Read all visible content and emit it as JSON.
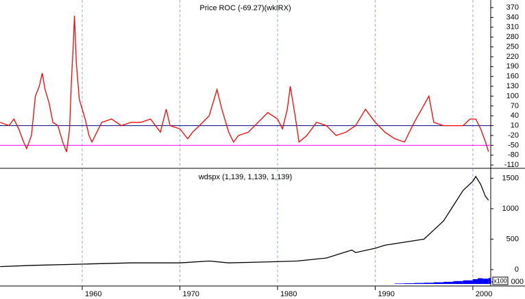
{
  "chart_data": [
    {
      "type": "line",
      "title": "Price ROC (-69.27)(wkIRX)",
      "xlim": [
        1951.58,
        2001.83
      ],
      "xticks": [
        1960,
        1970,
        1980,
        1990,
        2000
      ],
      "ylim": [
        -118,
        393
      ],
      "yticks": [
        370,
        340,
        310,
        280,
        250,
        220,
        190,
        160,
        130,
        100,
        70,
        40,
        10,
        -20,
        -50,
        -80,
        -110
      ],
      "grid": true,
      "reference_lines": [
        {
          "value": 10,
          "color": "#00007f"
        },
        {
          "value": -50,
          "color": "#ff00ff"
        }
      ],
      "series": [
        {
          "name": "Price ROC",
          "color": "#ff0000",
          "x": [
            1951.6,
            1952.5,
            1953,
            1953.5,
            1954,
            1954.3,
            1954.8,
            1955.2,
            1955.6,
            1955.9,
            1956.2,
            1956.6,
            1957,
            1957.5,
            1958,
            1958.4,
            1958.7,
            1958.9,
            1959.1,
            1959.2,
            1959.4,
            1959.7,
            1960,
            1960.3,
            1960.7,
            1961,
            1961.5,
            1962,
            1963,
            1964,
            1965,
            1966,
            1967,
            1968,
            1968.6,
            1969,
            1970,
            1970.8,
            1971.3,
            1972,
            1973,
            1973.8,
            1974.3,
            1975,
            1975.5,
            1976,
            1977,
            1978,
            1979,
            1980,
            1980.5,
            1981,
            1981.3,
            1981.8,
            1982.2,
            1983,
            1984,
            1985,
            1986,
            1987,
            1988,
            1989,
            1990,
            1991,
            1992,
            1993,
            1994,
            1995.5,
            1996,
            1997,
            1998,
            1999,
            1999.7,
            2000.3,
            2000.8,
            2001.3,
            2001.6
          ],
          "values": [
            20,
            10,
            30,
            0,
            -40,
            -60,
            -20,
            100,
            130,
            170,
            120,
            80,
            20,
            10,
            -40,
            -70,
            0,
            150,
            270,
            345,
            200,
            90,
            60,
            30,
            -20,
            -40,
            -10,
            20,
            30,
            10,
            20,
            20,
            30,
            -10,
            60,
            10,
            0,
            -30,
            -10,
            10,
            40,
            120,
            60,
            -10,
            -40,
            -20,
            -10,
            20,
            50,
            30,
            0,
            60,
            130,
            40,
            -40,
            -20,
            20,
            10,
            -20,
            -10,
            10,
            60,
            20,
            -10,
            -30,
            -40,
            20,
            100,
            20,
            10,
            10,
            10,
            30,
            30,
            0,
            -40,
            -69.27
          ]
        }
      ]
    },
    {
      "type": "line",
      "title": "wdspx (1,139, 1,139, 1,139)",
      "xlim": [
        1951.58,
        2001.83
      ],
      "xticks": [
        1960,
        1970,
        1980,
        1990,
        2000
      ],
      "ylim": [
        -236,
        1652
      ],
      "yticks": [
        1500,
        1000,
        500,
        0
      ],
      "y2lim": [
        0,
        40
      ],
      "y2ticks": [
        {
          "value": 0,
          "label": "000"
        }
      ],
      "y2_unit": "x100",
      "grid": true,
      "series": [
        {
          "name": "wdspx",
          "color": "#000000",
          "x": [
            1951.6,
            1955,
            1960,
            1965,
            1970,
            1973,
            1975,
            1980,
            1982,
            1985,
            1987.6,
            1988,
            1990,
            1991,
            1995,
            1996,
            1997,
            1998,
            1999,
            2000,
            2000.3,
            2000.8,
            2001.3,
            2001.6
          ],
          "values": [
            50,
            70,
            90,
            110,
            110,
            140,
            110,
            130,
            140,
            190,
            320,
            280,
            350,
            400,
            500,
            650,
            800,
            1050,
            1300,
            1450,
            1530,
            1400,
            1200,
            1139
          ]
        },
        {
          "name": "volume",
          "color": "#0000ff",
          "axis": "y2",
          "bars": true,
          "x": [
            1992,
            1993,
            1994,
            1995,
            1996,
            1997,
            1998,
            1999,
            2000,
            2000.5,
            2001,
            2001.6
          ],
          "values": [
            2,
            3,
            4,
            5,
            7,
            9,
            12,
            15,
            20,
            24,
            22,
            25
          ]
        }
      ]
    }
  ]
}
